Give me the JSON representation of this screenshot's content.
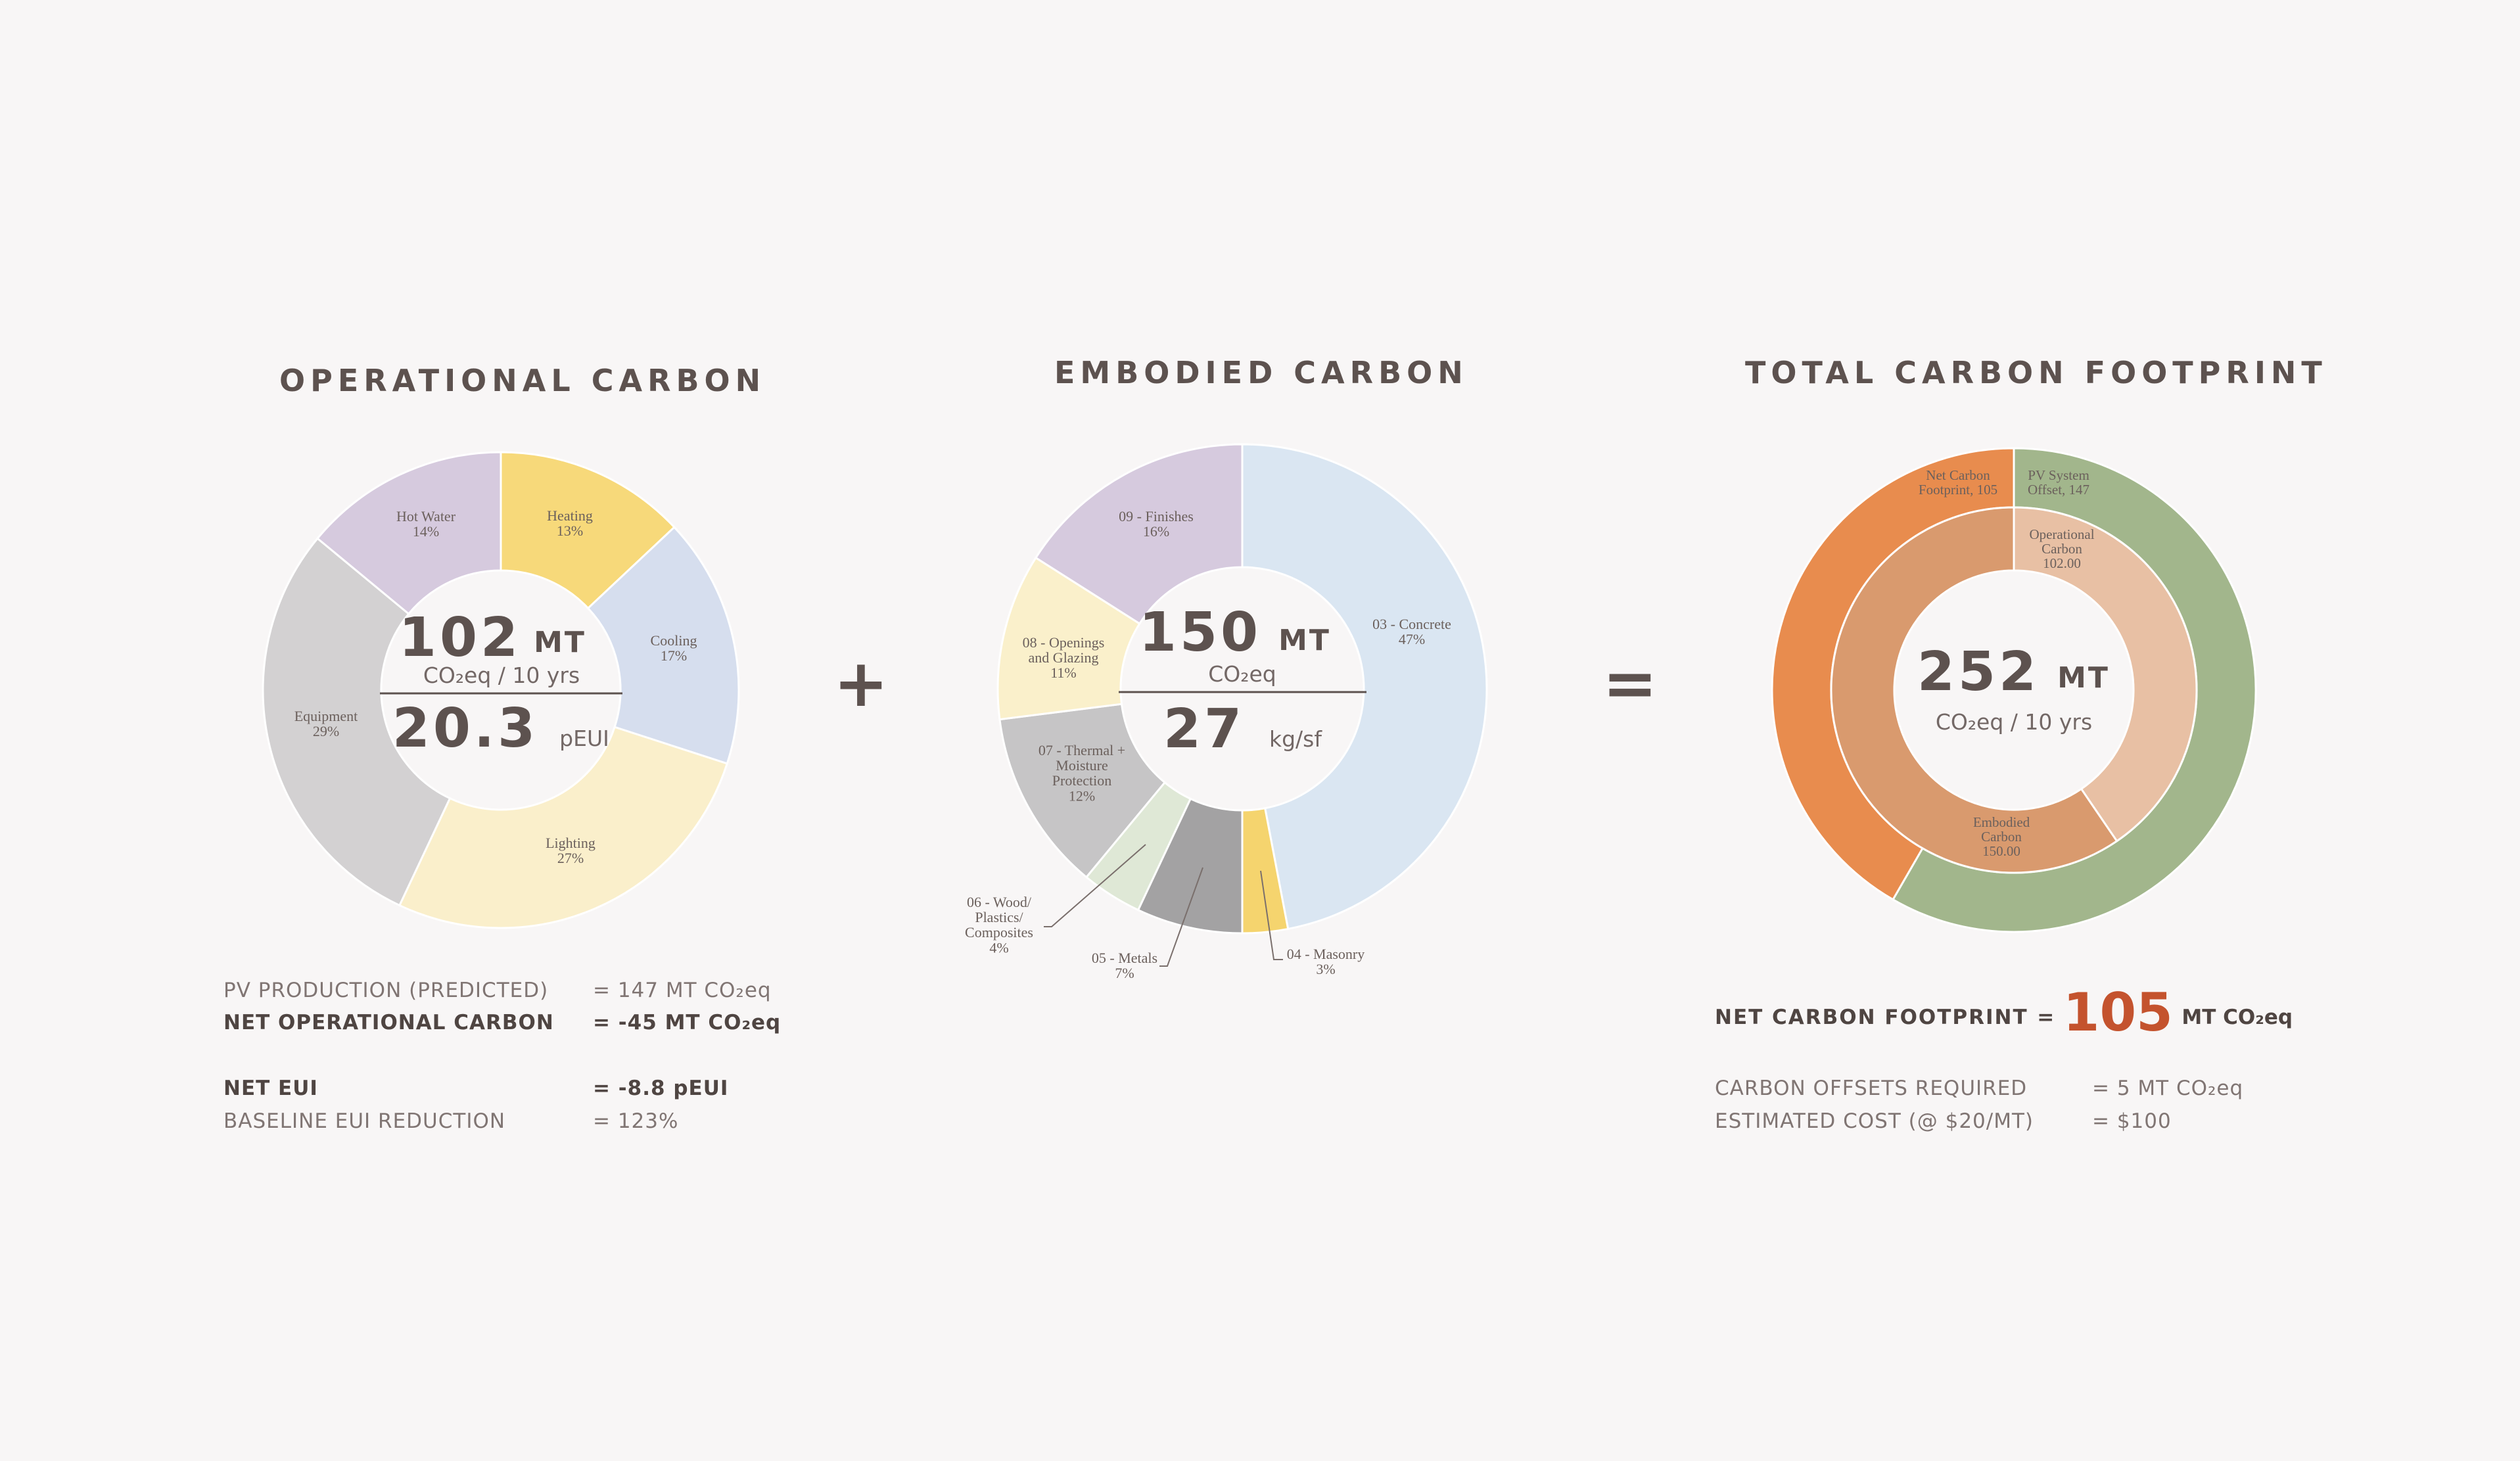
{
  "colors": {
    "hot_water": "#d6cade",
    "heating": "#f7d97a",
    "cooling": "#d6deee",
    "lighting": "#faefcb",
    "equipment": "#d3d1d2",
    "concrete": "#dae6f2",
    "masonry": "#f5d46e",
    "metals": "#a3a2a3",
    "wood": "#dfe8d6",
    "thermal": "#c6c5c6",
    "openings": "#faf0cb",
    "finishes": "#d6cade",
    "net_carbon": "#e88c4e",
    "pv_offset": "#a2b68c",
    "operational_inner": "#e8c0a4",
    "embodied_inner": "#d99a6e",
    "accent_red": "#c4532e"
  },
  "operational": {
    "title": "OPERATIONAL CARBON",
    "value": "102",
    "unit": "MT",
    "unit_sub": "CO₂eq / 10 yrs",
    "eui_value": "20.3",
    "eui_unit": "pEUI",
    "stats": [
      {
        "label": "PV PRODUCTION (PREDICTED)",
        "value": "= 147 MT CO₂eq",
        "strong": false
      },
      {
        "label": "NET OPERATIONAL CARBON",
        "value": "= -45 MT CO₂eq",
        "strong": true
      },
      {
        "label": "NET EUI",
        "value": "= -8.8 pEUI",
        "strong": true
      },
      {
        "label": "BASELINE EUI REDUCTION",
        "value": "= 123%",
        "strong": false
      }
    ]
  },
  "embodied": {
    "title": "EMBODIED CARBON",
    "value": "150",
    "unit": "MT",
    "unit_sub": "CO₂eq",
    "intensity_value": "27",
    "intensity_unit": "kg/sf"
  },
  "total": {
    "title": "TOTAL CARBON FOOTPRINT",
    "value": "252",
    "unit": "MT",
    "unit_sub": "CO₂eq / 10 yrs",
    "net_label": "NET CARBON FOOTPRINT",
    "net_eq": "=",
    "net_value": "105",
    "net_unit": "MT CO₂eq",
    "stats": [
      {
        "label": "CARBON OFFSETS REQUIRED",
        "value": "= 5 MT CO₂eq"
      },
      {
        "label": "ESTIMATED COST (@ $20/MT)",
        "value": "= $100"
      }
    ]
  },
  "operators": {
    "plus": "+",
    "equals": "="
  },
  "chart_data": [
    {
      "type": "pie",
      "title": "OPERATIONAL CARBON",
      "donut": true,
      "start_angle_deg": 0,
      "slices": [
        {
          "name": "Heating",
          "pct_label": "13%",
          "value": 13,
          "color": "#f7d97a"
        },
        {
          "name": "Cooling",
          "pct_label": "17%",
          "value": 17,
          "color": "#d6deee"
        },
        {
          "name": "Lighting",
          "pct_label": "27%",
          "value": 27,
          "color": "#faefcb"
        },
        {
          "name": "Equipment",
          "pct_label": "29%",
          "value": 29,
          "color": "#d3d1d2"
        },
        {
          "name": "Hot Water",
          "pct_label": "14%",
          "value": 14,
          "color": "#d6cade"
        }
      ]
    },
    {
      "type": "pie",
      "title": "EMBODIED CARBON",
      "donut": true,
      "start_angle_deg": 0,
      "slices": [
        {
          "name": "03 - Concrete",
          "pct_label": "47%",
          "value": 47,
          "color": "#dae6f2"
        },
        {
          "name": "04 - Masonry",
          "pct_label": "3%",
          "value": 3,
          "color": "#f5d46e"
        },
        {
          "name": "05 - Metals",
          "pct_label": "7%",
          "value": 7,
          "color": "#a3a2a3"
        },
        {
          "name": "06 - Wood/ Plastics/ Composites",
          "pct_label": "4%",
          "value": 4,
          "color": "#dfe8d6"
        },
        {
          "name": "07 - Thermal + Moisture Protection",
          "pct_label": "12%",
          "value": 12,
          "color": "#c6c5c6"
        },
        {
          "name": "08 - Openings and Glazing",
          "pct_label": "11%",
          "value": 11,
          "color": "#faf0cb"
        },
        {
          "name": "09 - Finishes",
          "pct_label": "16%",
          "value": 16,
          "color": "#d6cade"
        }
      ]
    },
    {
      "type": "pie",
      "title": "TOTAL CARBON FOOTPRINT",
      "donut": true,
      "nested": true,
      "outer": [
        {
          "name": "PV System Offset",
          "value": 147,
          "color": "#a2b68c"
        },
        {
          "name": "Net Carbon Footprint",
          "value": 105,
          "color": "#e88c4e"
        }
      ],
      "inner": [
        {
          "name": "Operational Carbon",
          "value": 102.0,
          "value_label": "102.00",
          "color": "#e8c0a4"
        },
        {
          "name": "Embodied Carbon",
          "value": 150.0,
          "value_label": "150.00",
          "color": "#d99a6e"
        }
      ]
    }
  ]
}
